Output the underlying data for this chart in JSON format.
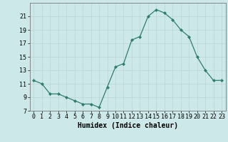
{
  "x": [
    0,
    1,
    2,
    3,
    4,
    5,
    6,
    7,
    8,
    9,
    10,
    11,
    12,
    13,
    14,
    15,
    16,
    17,
    18,
    19,
    20,
    21,
    22,
    23
  ],
  "y": [
    11.5,
    11.0,
    9.5,
    9.5,
    9.0,
    8.5,
    8.0,
    8.0,
    7.5,
    10.5,
    13.5,
    14.0,
    17.5,
    18.0,
    21.0,
    22.0,
    21.5,
    20.5,
    19.0,
    18.0,
    15.0,
    13.0,
    11.5,
    11.5
  ],
  "xlabel": "Humidex (Indice chaleur)",
  "xlim": [
    -0.5,
    23.5
  ],
  "ylim": [
    7,
    23
  ],
  "yticks": [
    7,
    9,
    11,
    13,
    15,
    17,
    19,
    21
  ],
  "xticks": [
    0,
    1,
    2,
    3,
    4,
    5,
    6,
    7,
    8,
    9,
    10,
    11,
    12,
    13,
    14,
    15,
    16,
    17,
    18,
    19,
    20,
    21,
    22,
    23
  ],
  "line_color": "#2e7d6e",
  "marker": "D",
  "marker_size": 2.0,
  "bg_color": "#cce8e8",
  "grid_color": "#b8d4d4",
  "label_fontsize": 7.0,
  "tick_fontsize": 6.0
}
